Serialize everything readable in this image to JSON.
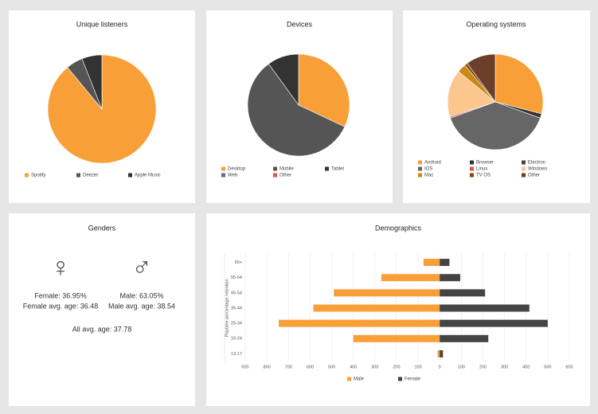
{
  "chart_data": [
    {
      "type": "pie",
      "title": "Unique listeners",
      "categories": [
        "Spotify",
        "Deezer",
        "Apple Music"
      ],
      "values": [
        89,
        5,
        6
      ],
      "colors": [
        "#f99f38",
        "#555555",
        "#333333"
      ]
    },
    {
      "type": "pie",
      "title": "Devices",
      "categories": [
        "Desktop",
        "Mobile",
        "Tablet",
        "Web",
        "Other"
      ],
      "values": [
        32,
        58,
        10,
        0,
        0
      ],
      "colors": [
        "#f99f38",
        "#555555",
        "#333333",
        "#5f6f7f",
        "#d9534f"
      ]
    },
    {
      "type": "pie",
      "title": "Operating systems",
      "categories": [
        "Android",
        "Browser",
        "Electron",
        "IOS",
        "Linux",
        "Windows",
        "Mac",
        "TV OS",
        "Other"
      ],
      "values": [
        29,
        1.5,
        0,
        39,
        0.5,
        16,
        3,
        1,
        10
      ],
      "colors": [
        "#f99f38",
        "#333333",
        "#444444",
        "#666666",
        "#d9534f",
        "#fbc78e",
        "#c88a10",
        "#8b4513",
        "#6b3f2a"
      ]
    },
    {
      "type": "butterfly-bar",
      "title": "Demographics",
      "y_label": "Playtime percentage retention",
      "categories": [
        "65+",
        "55-64",
        "45-54",
        "35-44",
        "25-34",
        "18-24",
        "13-17"
      ],
      "series": [
        {
          "name": "Male",
          "color": "#f99f38",
          "values": [
            -75,
            -270,
            -490,
            -585,
            -745,
            -400,
            -10
          ]
        },
        {
          "name": "Female",
          "color": "#444444",
          "values": [
            45,
            95,
            210,
            415,
            500,
            225,
            15
          ]
        }
      ],
      "xlim": [
        -900,
        600
      ],
      "xticks": [
        {
          "value": -900,
          "label": "900"
        },
        {
          "value": -800,
          "label": "800"
        },
        {
          "value": -700,
          "label": "700"
        },
        {
          "value": -600,
          "label": "600"
        },
        {
          "value": -500,
          "label": "500"
        },
        {
          "value": -400,
          "label": "400"
        },
        {
          "value": -300,
          "label": "300"
        },
        {
          "value": -200,
          "label": "200"
        },
        {
          "value": -100,
          "label": "100"
        },
        0,
        100,
        200,
        300,
        400,
        500,
        600
      ],
      "grid": true
    }
  ],
  "genders": {
    "title": "Genders",
    "female_symbol": "♀",
    "male_symbol": "♂",
    "female_share": "Female: 36.95%",
    "female_age": "Female avg. age: 36.48",
    "male_share": "Male: 63.05%",
    "male_age": "Male avg. age: 38.54",
    "all_age": "All avg. age: 37.78"
  }
}
